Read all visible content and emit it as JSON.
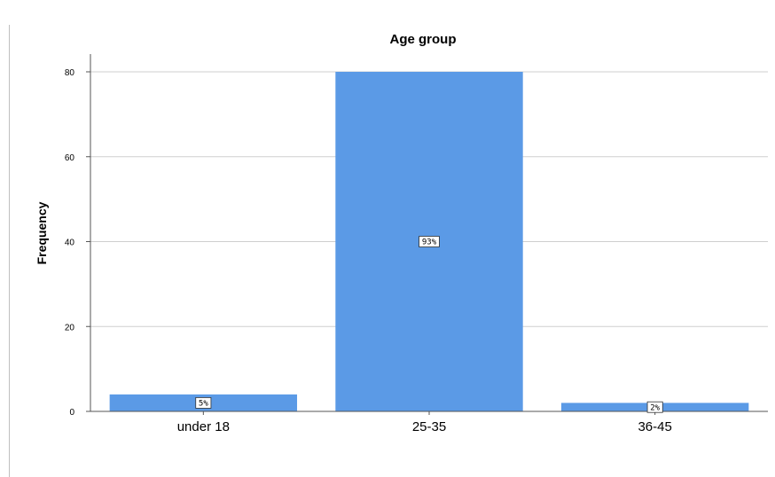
{
  "chart_data": {
    "type": "bar",
    "title": "Age group",
    "xlabel": "",
    "ylabel": "Frequency",
    "categories": [
      "under 18",
      "25-35",
      "36-45"
    ],
    "values": [
      4,
      80,
      2
    ],
    "data_labels": [
      "5%",
      "93%",
      "2%"
    ],
    "ylim": [
      0,
      80
    ],
    "yticks": [
      0,
      20,
      40,
      60,
      80
    ],
    "grid": true,
    "bar_color": "#5b9ae6"
  }
}
